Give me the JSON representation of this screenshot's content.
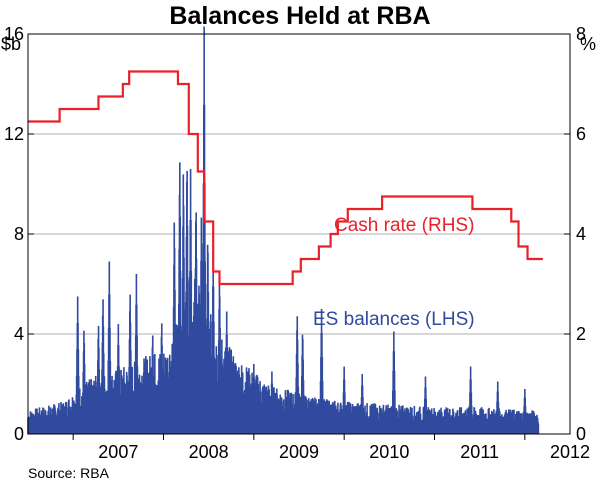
{
  "chart_data": {
    "type": "line",
    "title": "Balances Held at RBA",
    "left_axis": {
      "unit": "$b",
      "ylim": [
        0,
        16
      ],
      "ticks": [
        "0",
        "4",
        "8",
        "12",
        "16"
      ]
    },
    "right_axis": {
      "unit": "%",
      "ylim": [
        0,
        8
      ],
      "ticks": [
        "0",
        "2",
        "4",
        "6",
        "8"
      ]
    },
    "x_axis": {
      "xlim": [
        2006.5,
        2012.5
      ],
      "ticks": [
        "2007",
        "2008",
        "2009",
        "2010",
        "2011",
        "2012"
      ]
    },
    "grid": "horizontal",
    "series": [
      {
        "name": "Cash rate (RHS)",
        "axis": "right",
        "color": "#e8212a",
        "style": "step",
        "points": [
          [
            2006.5,
            6.25
          ],
          [
            2006.85,
            6.5
          ],
          [
            2007.1,
            6.5
          ],
          [
            2007.28,
            6.75
          ],
          [
            2007.55,
            7.0
          ],
          [
            2007.62,
            7.25
          ],
          [
            2008.1,
            7.25
          ],
          [
            2008.16,
            7.0
          ],
          [
            2008.28,
            6.0
          ],
          [
            2008.38,
            5.25
          ],
          [
            2008.45,
            4.25
          ],
          [
            2008.55,
            3.25
          ],
          [
            2008.62,
            3.0
          ],
          [
            2009.3,
            3.0
          ],
          [
            2009.43,
            3.25
          ],
          [
            2009.52,
            3.5
          ],
          [
            2009.72,
            3.75
          ],
          [
            2009.85,
            4.0
          ],
          [
            2009.93,
            4.25
          ],
          [
            2010.04,
            4.5
          ],
          [
            2010.42,
            4.75
          ],
          [
            2011.3,
            4.75
          ],
          [
            2011.42,
            4.5
          ],
          [
            2011.85,
            4.25
          ],
          [
            2011.93,
            3.75
          ],
          [
            2012.03,
            3.5
          ],
          [
            2012.2,
            3.5
          ]
        ]
      },
      {
        "name": "ES balances (LHS)",
        "axis": "left",
        "color": "#2f4a9e",
        "style": "spiky-area",
        "baseline": [
          [
            2006.5,
            0.8
          ],
          [
            2006.9,
            1.1
          ],
          [
            2007.05,
            1.6
          ],
          [
            2007.28,
            2.0
          ],
          [
            2007.5,
            2.2
          ],
          [
            2007.8,
            2.6
          ],
          [
            2008.05,
            3.0
          ],
          [
            2008.2,
            4.5
          ],
          [
            2008.32,
            5.5
          ],
          [
            2008.4,
            5.0
          ],
          [
            2008.55,
            3.8
          ],
          [
            2008.8,
            2.6
          ],
          [
            2009.2,
            1.6
          ],
          [
            2009.5,
            1.4
          ],
          [
            2009.7,
            1.2
          ],
          [
            2010.0,
            1.1
          ],
          [
            2010.5,
            1.0
          ],
          [
            2011.0,
            0.9
          ],
          [
            2011.5,
            0.9
          ],
          [
            2012.0,
            0.8
          ],
          [
            2012.15,
            0.8
          ]
        ],
        "peaks": [
          [
            2007.05,
            5.5
          ],
          [
            2007.12,
            4.3
          ],
          [
            2007.28,
            4.5
          ],
          [
            2007.33,
            5.6
          ],
          [
            2007.4,
            6.9
          ],
          [
            2007.5,
            4.4
          ],
          [
            2007.63,
            5.8
          ],
          [
            2007.7,
            6.4
          ],
          [
            2007.88,
            4.1
          ],
          [
            2007.98,
            4.6
          ],
          [
            2008.12,
            8.8
          ],
          [
            2008.18,
            11.3
          ],
          [
            2008.22,
            10.8
          ],
          [
            2008.26,
            11.4
          ],
          [
            2008.3,
            10.6
          ],
          [
            2008.36,
            9.6
          ],
          [
            2008.42,
            9.0
          ],
          [
            2008.45,
            16.3
          ],
          [
            2008.49,
            8.2
          ],
          [
            2008.55,
            7.3
          ],
          [
            2008.62,
            6.5
          ],
          [
            2008.7,
            4.9
          ],
          [
            2009.0,
            2.8
          ],
          [
            2009.2,
            2.5
          ],
          [
            2009.48,
            4.9
          ],
          [
            2009.54,
            4.3
          ],
          [
            2009.75,
            5.0
          ],
          [
            2010.0,
            2.7
          ],
          [
            2010.2,
            2.4
          ],
          [
            2010.55,
            4.1
          ],
          [
            2010.9,
            2.3
          ],
          [
            2011.4,
            2.7
          ],
          [
            2011.7,
            2.1
          ],
          [
            2012.0,
            1.8
          ]
        ]
      }
    ],
    "annotations": [
      "Cash rate (RHS)",
      "ES balances (LHS)"
    ],
    "source": "Source: RBA"
  }
}
